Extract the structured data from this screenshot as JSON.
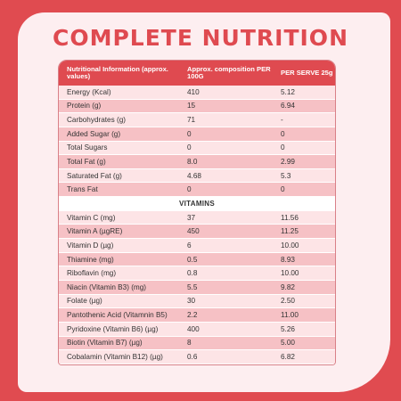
{
  "title": "COMPLETE NUTRITION",
  "table": {
    "headers": [
      "Nutritional Information (approx. values)",
      "Approx. composition PER 100G",
      "PER SERVE 25g"
    ],
    "rows": [
      [
        "Energy (Kcal)",
        "410",
        "5.12"
      ],
      [
        "Protein (g)",
        "15",
        "6.94"
      ],
      [
        "Carbohydrates (g)",
        "71",
        "-"
      ],
      [
        "Added Sugar (g)",
        "0",
        "0"
      ],
      [
        "Total Sugars",
        "0",
        "0"
      ],
      [
        "Total Fat (g)",
        "8.0",
        "2.99"
      ],
      [
        "Saturated Fat (g)",
        "4.68",
        "5.3"
      ],
      [
        "Trans Fat",
        "0",
        "0"
      ]
    ],
    "section_label": "VITAMINS",
    "vitamin_rows": [
      [
        "Vitamin C (mg)",
        "37",
        "11.56"
      ],
      [
        "Vitamin A (µgRE)",
        "450",
        "11.25"
      ],
      [
        "Vitamin D (µg)",
        "6",
        "10.00"
      ],
      [
        "Thiamine (mg)",
        "0.5",
        "8.93"
      ],
      [
        "Riboflavin (mg)",
        "0.8",
        "10.00"
      ],
      [
        "Niacin (Vitamin B3) (mg)",
        "5.5",
        "9.82"
      ],
      [
        "Folate (µg)",
        "30",
        "2.50"
      ],
      [
        "Pantothenic Acid (Vitamnin B5)",
        "2.2",
        "11.00"
      ],
      [
        "Pyridoxine (Vitamin B6) (µg)",
        "400",
        "5.26"
      ],
      [
        "Biotin (Vitamin B7) (µg)",
        "8",
        "5.00"
      ],
      [
        "Cobalamin (Vitamin B12) (µg)",
        "0.6",
        "6.82"
      ]
    ]
  }
}
